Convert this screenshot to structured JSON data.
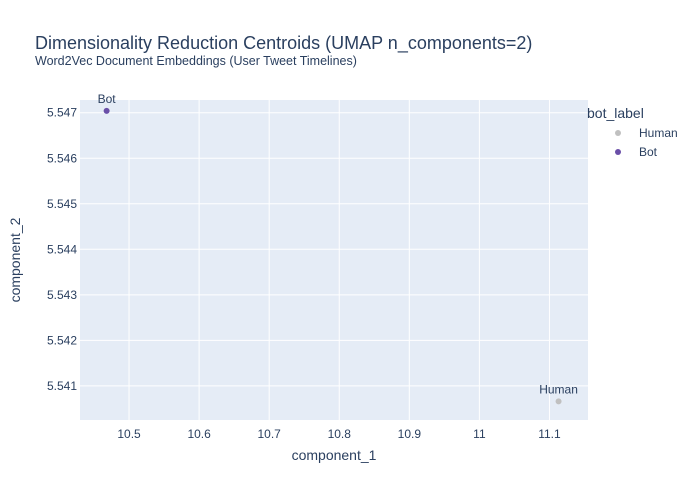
{
  "chart": {
    "title": "Dimensionality Reduction Centroids (UMAP n_components=2)",
    "subtitle": "Word2Vec Document Embeddings (User Tweet Timelines)"
  },
  "chart_data": {
    "type": "scatter",
    "title": "Dimensionality Reduction Centroids (UMAP n_components=2)",
    "subtitle": "Word2Vec Document Embeddings (User Tweet Timelines)",
    "xlabel": "component_1",
    "ylabel": "component_2",
    "xlim": [
      10.43,
      11.155
    ],
    "ylim": [
      5.54025,
      5.54728
    ],
    "x_ticks": [
      10.5,
      10.6,
      10.7,
      10.8,
      10.9,
      11.0,
      11.1
    ],
    "x_tick_labels": [
      "10.5",
      "10.6",
      "10.7",
      "10.8",
      "10.9",
      "11",
      "11.1"
    ],
    "y_ticks": [
      5.541,
      5.542,
      5.543,
      5.544,
      5.545,
      5.546,
      5.547
    ],
    "y_tick_labels": [
      "5.541",
      "5.542",
      "5.543",
      "5.544",
      "5.545",
      "5.546",
      "5.547"
    ],
    "grid": true,
    "legend": {
      "title": "bot_label",
      "placement": "right",
      "entries": [
        {
          "name": "Human",
          "color": "#c0c0c0"
        },
        {
          "name": "Bot",
          "color": "#6a4fa8"
        }
      ]
    },
    "series": [
      {
        "name": "Human",
        "color": "#c0c0c0",
        "points": [
          {
            "x": 11.113,
            "y": 5.54066,
            "label": "Human"
          }
        ]
      },
      {
        "name": "Bot",
        "color": "#6a4fa8",
        "points": [
          {
            "x": 10.468,
            "y": 5.54704,
            "label": "Bot"
          }
        ]
      }
    ]
  }
}
